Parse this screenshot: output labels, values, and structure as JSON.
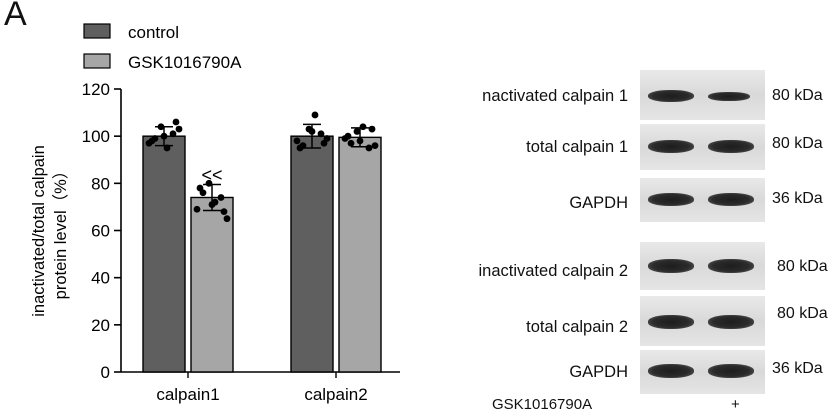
{
  "panel_letter": "A",
  "chart_data": {
    "type": "bar",
    "categories": [
      "calpain1",
      "calpain2"
    ],
    "series": [
      {
        "name": "control",
        "color": "#5f5f5f",
        "values": [
          100,
          100
        ],
        "sd": [
          4,
          5
        ],
        "points": [
          [
            97,
            99,
            104,
            95,
            101,
            103,
            98,
            100,
            106
          ],
          [
            98,
            96,
            103,
            109,
            101,
            99,
            95,
            102,
            97
          ]
        ]
      },
      {
        "name": "GSK1016790A",
        "color": "#a6a6a6",
        "values": [
          74,
          99.5
        ],
        "sd": [
          5.5,
          4
        ],
        "points": [
          [
            69,
            76,
            80,
            72,
            74,
            65,
            78,
            71,
            68
          ],
          [
            99,
            97,
            102,
            104,
            95,
            96,
            100,
            98,
            103
          ]
        ]
      }
    ],
    "ylabel_line1": "inactivated/total calpain",
    "ylabel_line2": "protein level（%）",
    "ylim": [
      0,
      120
    ],
    "yticks": [
      "0",
      "20",
      "40",
      "60",
      "80",
      "100",
      "120"
    ],
    "annotation": "<<",
    "legend_position": "top-left"
  },
  "western_blot": {
    "rows": [
      {
        "label": "nactivated calpain 1",
        "size": "80 kDa"
      },
      {
        "label": "total calpain 1",
        "size": "80 kDa"
      },
      {
        "label": "GAPDH",
        "size": "36 kDa"
      },
      {
        "label": "inactivated calpain 2",
        "size": "80 kDa"
      },
      {
        "label": "total calpain 2",
        "size": "80 kDa"
      },
      {
        "label": "GAPDH",
        "size": "36 kDa"
      }
    ],
    "treatment_label": "GSK1016790A",
    "lane_marks": [
      "",
      "+"
    ]
  }
}
